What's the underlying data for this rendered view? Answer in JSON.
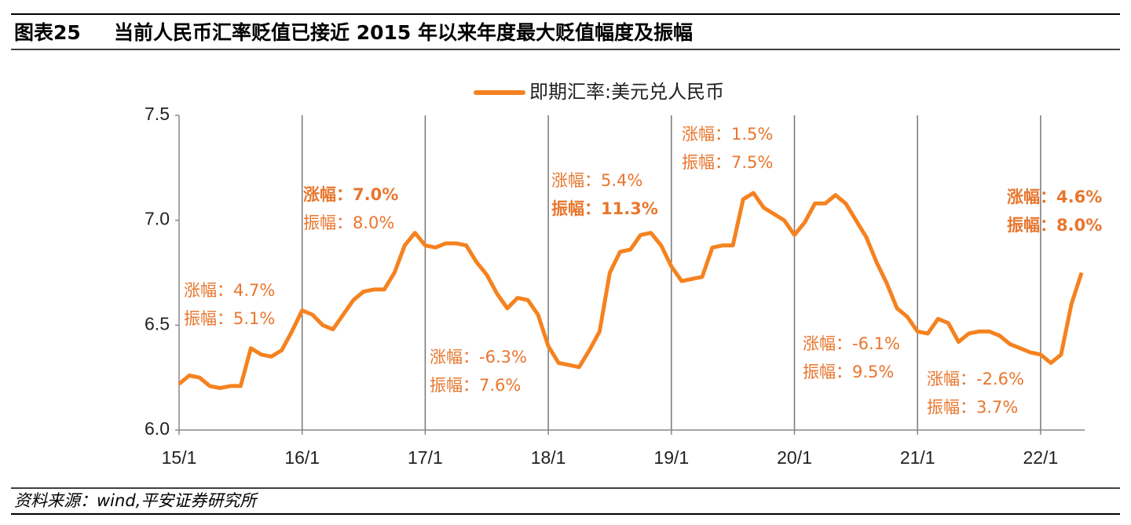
{
  "chart_data": {
    "type": "line",
    "figure_label": "图表25",
    "title": "当前人民币汇率贬值已接近 2015 年以来年度最大贬值幅度及振幅",
    "source": "资料来源：wind,平安证券研究所",
    "x": [
      "15/1",
      "15/2",
      "15/3",
      "15/4",
      "15/5",
      "15/6",
      "15/7",
      "15/8",
      "15/9",
      "15/10",
      "15/11",
      "15/12",
      "16/1",
      "16/2",
      "16/3",
      "16/4",
      "16/5",
      "16/6",
      "16/7",
      "16/8",
      "16/9",
      "16/10",
      "16/11",
      "16/12",
      "17/1",
      "17/2",
      "17/3",
      "17/4",
      "17/5",
      "17/6",
      "17/7",
      "17/8",
      "17/9",
      "17/10",
      "17/11",
      "17/12",
      "18/1",
      "18/2",
      "18/3",
      "18/4",
      "18/5",
      "18/6",
      "18/7",
      "18/8",
      "18/9",
      "18/10",
      "18/11",
      "18/12",
      "19/1",
      "19/2",
      "19/3",
      "19/4",
      "19/5",
      "19/6",
      "19/7",
      "19/8",
      "19/9",
      "19/10",
      "19/11",
      "19/12",
      "20/1",
      "20/2",
      "20/3",
      "20/4",
      "20/5",
      "20/6",
      "20/7",
      "20/8",
      "20/9",
      "20/10",
      "20/11",
      "20/12",
      "21/1",
      "21/2",
      "21/3",
      "21/4",
      "21/5",
      "21/6",
      "21/7",
      "21/8",
      "21/9",
      "21/10",
      "21/11",
      "21/12",
      "22/1",
      "22/2",
      "22/3",
      "22/4",
      "22/5"
    ],
    "series": [
      {
        "name": "即期汇率:美元兑人民币",
        "color": "#f5821f",
        "values": [
          6.22,
          6.26,
          6.25,
          6.21,
          6.2,
          6.21,
          6.21,
          6.39,
          6.36,
          6.35,
          6.38,
          6.47,
          6.57,
          6.55,
          6.5,
          6.48,
          6.55,
          6.62,
          6.66,
          6.67,
          6.67,
          6.75,
          6.88,
          6.94,
          6.88,
          6.87,
          6.89,
          6.89,
          6.88,
          6.8,
          6.74,
          6.65,
          6.58,
          6.63,
          6.62,
          6.55,
          6.4,
          6.32,
          6.31,
          6.3,
          6.38,
          6.47,
          6.75,
          6.85,
          6.86,
          6.93,
          6.94,
          6.88,
          6.78,
          6.71,
          6.72,
          6.73,
          6.87,
          6.88,
          6.88,
          7.1,
          7.13,
          7.06,
          7.03,
          7.0,
          6.93,
          6.99,
          7.08,
          7.08,
          7.12,
          7.08,
          7.0,
          6.92,
          6.8,
          6.7,
          6.58,
          6.54,
          6.47,
          6.46,
          6.53,
          6.51,
          6.42,
          6.46,
          6.47,
          6.47,
          6.45,
          6.41,
          6.39,
          6.37,
          6.36,
          6.32,
          6.36,
          6.6,
          6.75
        ]
      }
    ],
    "xticks": [
      "15/1",
      "16/1",
      "17/1",
      "18/1",
      "19/1",
      "20/1",
      "21/1",
      "22/1"
    ],
    "ylim": [
      6,
      7.5
    ],
    "yticks": [
      {
        "value": 6,
        "label": "6.0"
      },
      6.5,
      {
        "value": 7,
        "label": "7.0"
      },
      7.5
    ],
    "grid": "x",
    "legend": "top",
    "annotations": [
      {
        "lines": [
          "涨幅：4.7%",
          "振幅：5.1%"
        ],
        "bold": [
          false,
          false
        ]
      },
      {
        "lines": [
          "涨幅：7.0%",
          "振幅：8.0%"
        ],
        "bold": [
          true,
          false
        ]
      },
      {
        "lines": [
          "涨幅：-6.3%",
          "振幅：7.6%"
        ],
        "bold": [
          false,
          false
        ]
      },
      {
        "lines": [
          "涨幅：5.4%",
          "振幅：11.3%"
        ],
        "bold": [
          false,
          true
        ]
      },
      {
        "lines": [
          "涨幅：1.5%",
          "振幅：7.5%"
        ],
        "bold": [
          false,
          false
        ]
      },
      {
        "lines": [
          "涨幅：-6.1%",
          "振幅：9.5%"
        ],
        "bold": [
          false,
          false
        ]
      },
      {
        "lines": [
          "涨幅：-2.6%",
          "振幅：3.7%"
        ],
        "bold": [
          false,
          false
        ]
      },
      {
        "lines": [
          "涨幅：4.6%",
          "振幅：8.0%"
        ],
        "bold": [
          true,
          true
        ]
      }
    ]
  }
}
